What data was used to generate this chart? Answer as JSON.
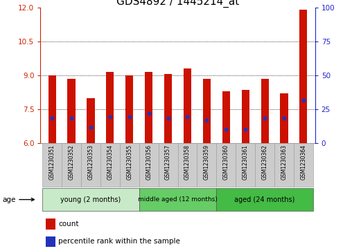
{
  "title": "GDS4892 / 1445214_at",
  "samples": [
    "GSM1230351",
    "GSM1230352",
    "GSM1230353",
    "GSM1230354",
    "GSM1230355",
    "GSM1230356",
    "GSM1230357",
    "GSM1230358",
    "GSM1230359",
    "GSM1230360",
    "GSM1230361",
    "GSM1230362",
    "GSM1230363",
    "GSM1230364"
  ],
  "bar_heights": [
    9.0,
    8.85,
    8.0,
    9.15,
    9.0,
    9.15,
    9.05,
    9.3,
    8.85,
    8.3,
    8.35,
    8.85,
    8.2,
    11.9
  ],
  "blue_positions": [
    7.1,
    7.1,
    6.7,
    7.15,
    7.15,
    7.3,
    7.1,
    7.15,
    7.0,
    6.6,
    6.6,
    7.1,
    7.1,
    7.9
  ],
  "ylim_left": [
    6,
    12
  ],
  "ylim_right": [
    0,
    100
  ],
  "yticks_left": [
    6,
    7.5,
    9,
    10.5,
    12
  ],
  "yticks_right": [
    0,
    25,
    50,
    75,
    100
  ],
  "bar_color": "#cc1100",
  "blue_color": "#2233bb",
  "bar_bottom": 6.0,
  "groups": [
    {
      "label": "young (2 months)",
      "start": 0,
      "end": 5,
      "color": "#c8eac8"
    },
    {
      "label": "middle aged (12 months)",
      "start": 5,
      "end": 9,
      "color": "#66cc66"
    },
    {
      "label": "aged (24 months)",
      "start": 9,
      "end": 14,
      "color": "#44bb44"
    }
  ],
  "group_label": "age",
  "legend_count_label": "count",
  "legend_pct_label": "percentile rank within the sample",
  "grid_yticks": [
    7.5,
    9.0,
    10.5
  ],
  "title_fontsize": 11,
  "axis_color_left": "#cc2200",
  "axis_color_right": "#2222cc",
  "sample_box_color": "#cccccc",
  "bar_width": 0.4
}
